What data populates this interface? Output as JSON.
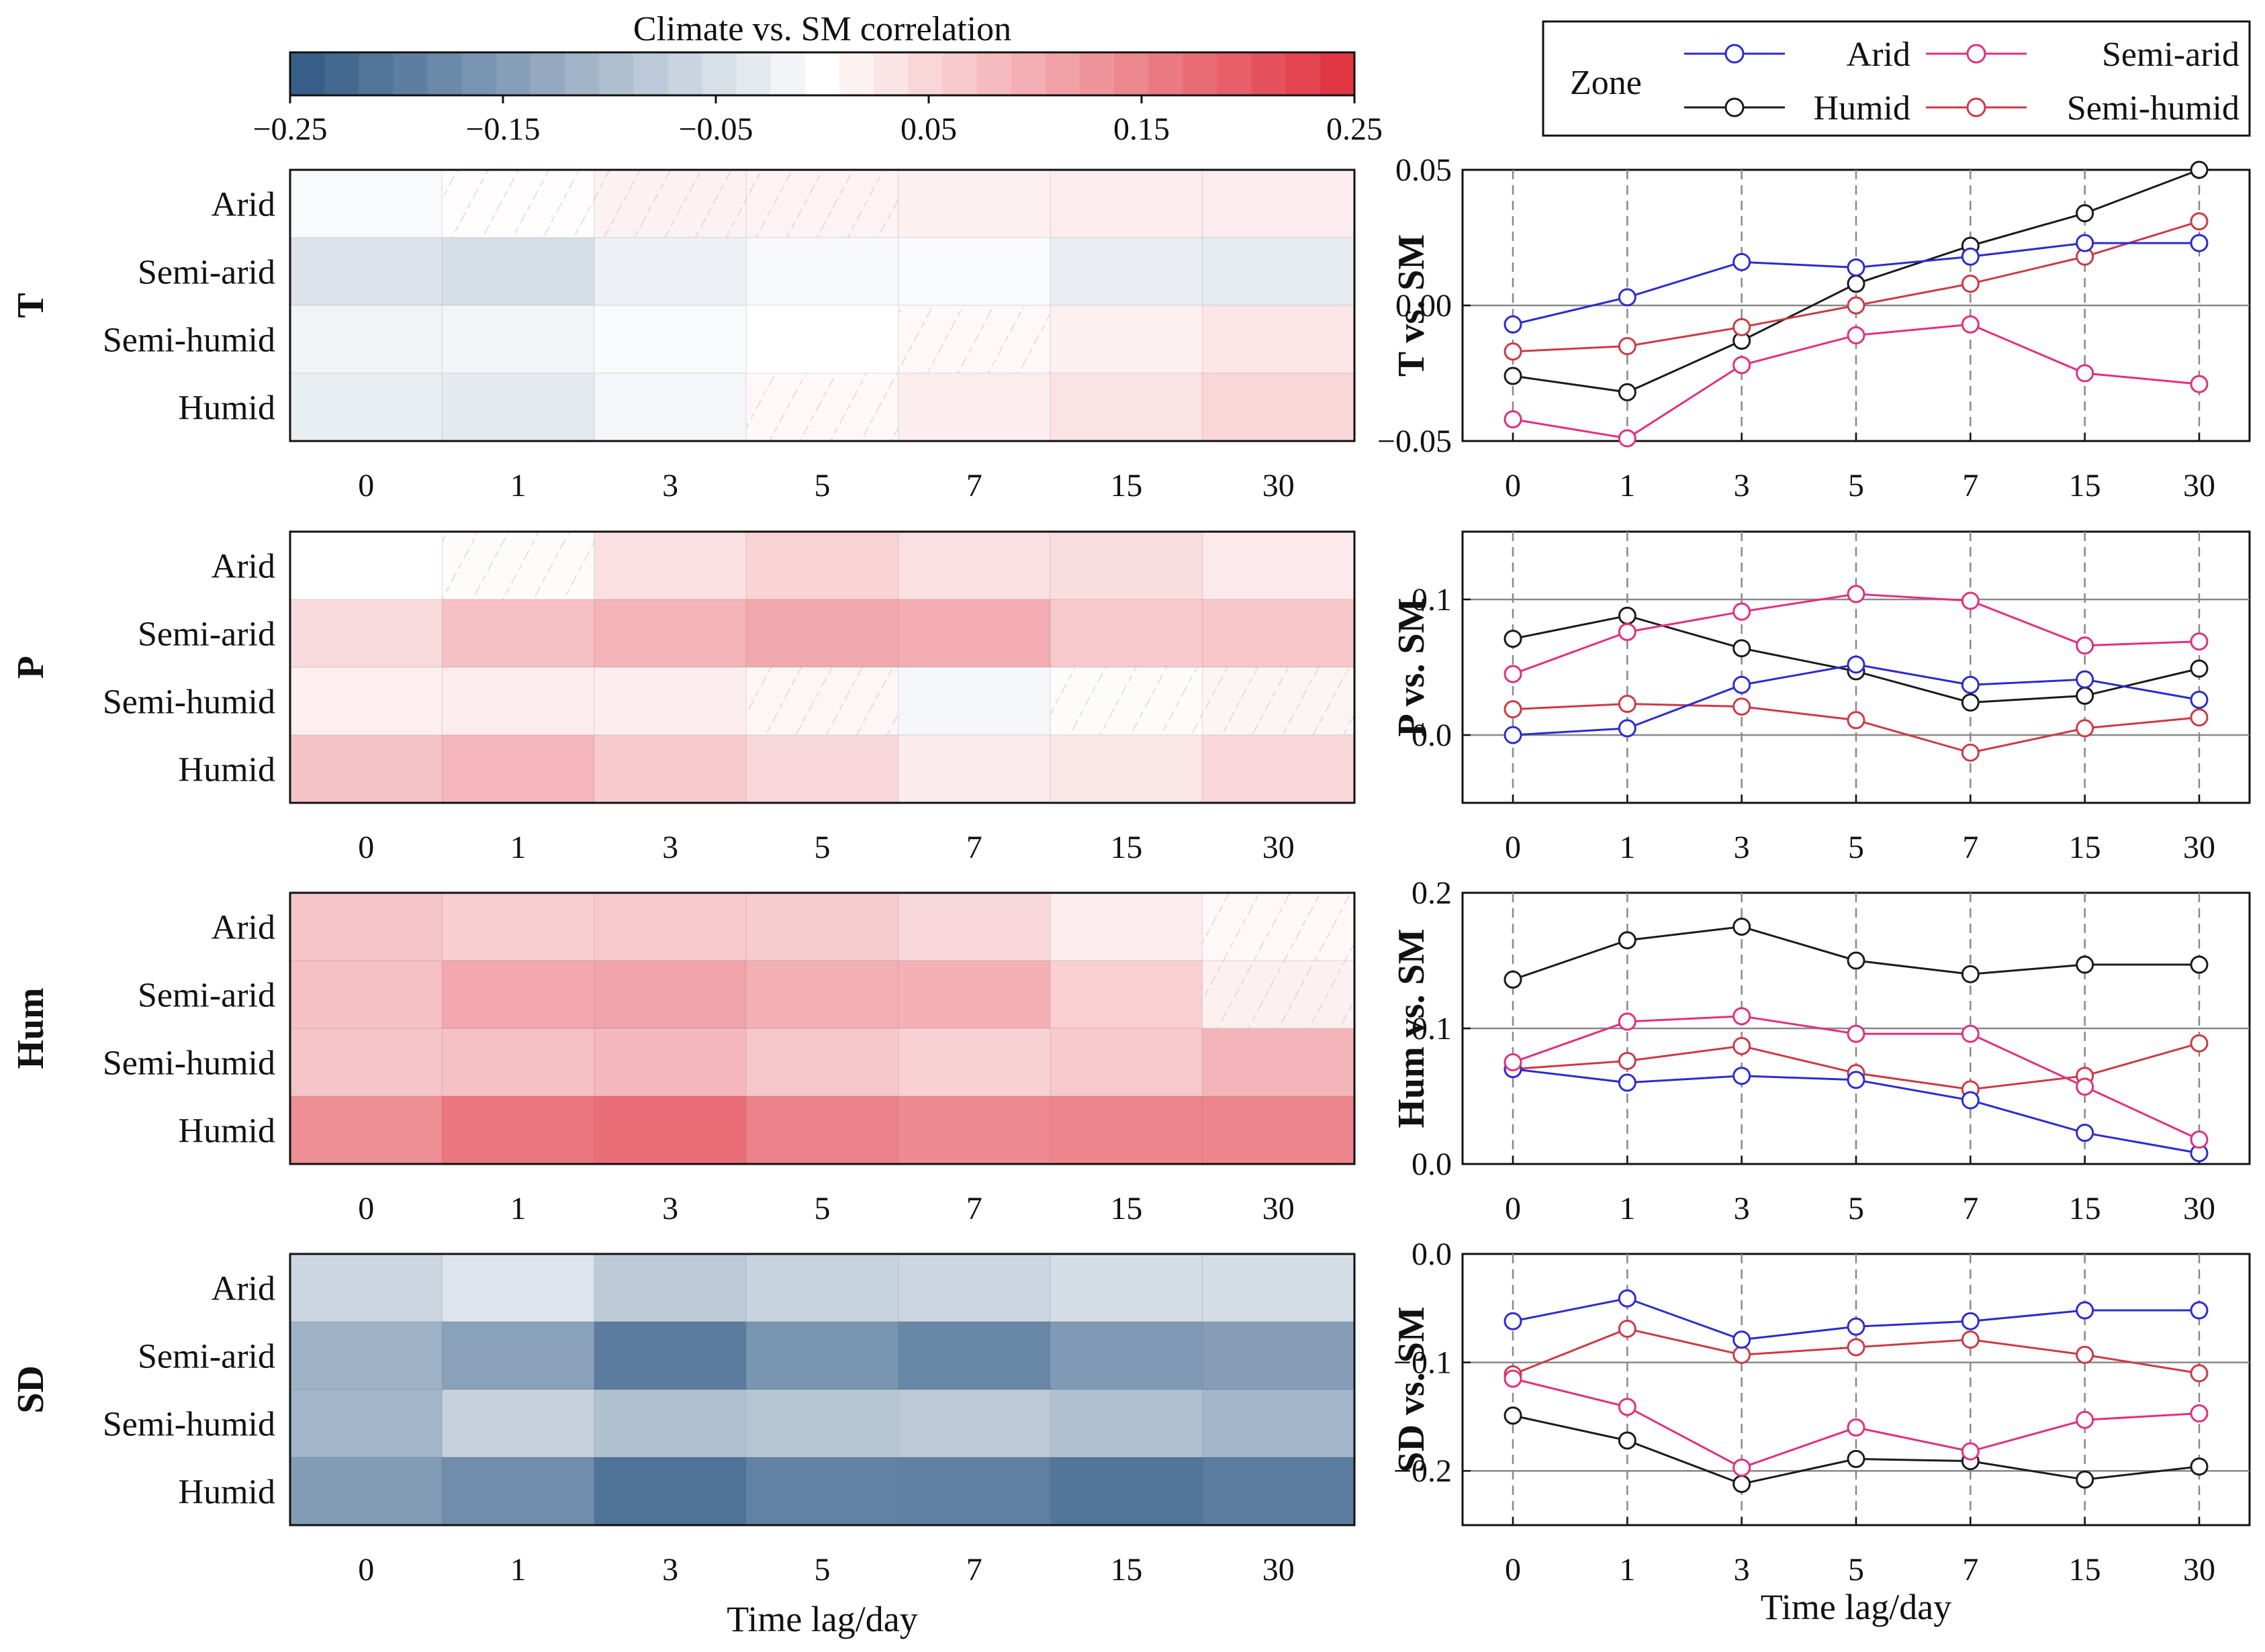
{
  "chart_data": {
    "type": "heatmap",
    "colorbar": {
      "title": "Climate vs. SM correlation",
      "min": -0.25,
      "max": 0.25,
      "ticks": [
        "−0.25",
        "−0.15",
        "−0.05",
        "0.05",
        "0.15",
        "0.25"
      ],
      "neg_color": "#2f5985",
      "pos_color": "#e0303d"
    },
    "lags": [
      "0",
      "1",
      "3",
      "5",
      "7",
      "15",
      "30"
    ],
    "zones": [
      "Arid",
      "Semi-arid",
      "Semi-humid",
      "Humid"
    ],
    "xlabel": "Time lag/day",
    "panels": [
      {
        "var": "T",
        "ylabel": "T vs. SM",
        "ylim": [
          -0.05,
          0.05
        ],
        "yticks": [
          "−0.05",
          "0.00",
          "0.05"
        ],
        "series": [
          {
            "name": "Arid",
            "values": [
              -0.007,
              0.003,
              0.016,
              0.014,
              0.018,
              0.023,
              0.023
            ]
          },
          {
            "name": "Semi-arid",
            "values": [
              -0.042,
              -0.049,
              -0.022,
              -0.011,
              -0.007,
              -0.025,
              -0.029
            ]
          },
          {
            "name": "Semi-humid",
            "values": [
              -0.017,
              -0.015,
              -0.008,
              0.0,
              0.008,
              0.018,
              0.031
            ]
          },
          {
            "name": "Humid",
            "values": [
              -0.026,
              -0.032,
              -0.013,
              0.008,
              0.022,
              0.034,
              0.05
            ]
          }
        ],
        "heat_insignificant": [
          [
            1,
            2,
            3
          ],
          [],
          [
            4
          ],
          [
            3
          ]
        ]
      },
      {
        "var": "P",
        "ylabel": "P vs. SM",
        "ylim": [
          -0.05,
          0.15
        ],
        "yticks": [
          "0.0",
          "0.1"
        ],
        "series": [
          {
            "name": "Arid",
            "values": [
              0.0,
              0.005,
              0.037,
              0.052,
              0.037,
              0.041,
              0.026
            ]
          },
          {
            "name": "Semi-arid",
            "values": [
              0.045,
              0.076,
              0.091,
              0.104,
              0.099,
              0.066,
              0.069
            ]
          },
          {
            "name": "Semi-humid",
            "values": [
              0.019,
              0.023,
              0.021,
              0.011,
              -0.013,
              0.005,
              0.013
            ]
          },
          {
            "name": "Humid",
            "values": [
              0.071,
              0.088,
              0.064,
              0.047,
              0.024,
              0.029,
              0.049
            ]
          }
        ],
        "heat_insignificant": [
          [
            1
          ],
          [],
          [
            3,
            5,
            6
          ],
          []
        ]
      },
      {
        "var": "Hum",
        "ylabel": "Hum vs. SM",
        "ylim": [
          0.0,
          0.2
        ],
        "yticks": [
          "0.0",
          "0.1",
          "0.2"
        ],
        "series": [
          {
            "name": "Arid",
            "values": [
              0.07,
              0.06,
              0.065,
              0.062,
              0.047,
              0.023,
              0.008
            ]
          },
          {
            "name": "Semi-arid",
            "values": [
              0.075,
              0.105,
              0.109,
              0.096,
              0.096,
              0.057,
              0.018
            ]
          },
          {
            "name": "Semi-humid",
            "values": [
              0.07,
              0.076,
              0.087,
              0.067,
              0.055,
              0.065,
              0.089
            ]
          },
          {
            "name": "Humid",
            "values": [
              0.136,
              0.165,
              0.175,
              0.15,
              0.14,
              0.147,
              0.147
            ]
          }
        ],
        "heat_insignificant": [
          [
            6
          ],
          [
            6
          ],
          [],
          []
        ]
      },
      {
        "var": "SD",
        "ylabel": "SD vs. SM",
        "ylim": [
          -0.25,
          0.0
        ],
        "yticks": [
          "−0.2",
          "−0.1",
          "0.0"
        ],
        "series": [
          {
            "name": "Arid",
            "values": [
              -0.062,
              -0.041,
              -0.079,
              -0.067,
              -0.062,
              -0.052,
              -0.052
            ]
          },
          {
            "name": "Semi-arid",
            "values": [
              -0.115,
              -0.141,
              -0.197,
              -0.16,
              -0.182,
              -0.153,
              -0.147
            ]
          },
          {
            "name": "Semi-humid",
            "values": [
              -0.111,
              -0.069,
              -0.093,
              -0.086,
              -0.079,
              -0.093,
              -0.11
            ]
          },
          {
            "name": "Humid",
            "values": [
              -0.149,
              -0.172,
              -0.212,
              -0.189,
              -0.191,
              -0.208,
              -0.196
            ]
          }
        ],
        "heat_insignificant": [
          [],
          [],
          [],
          []
        ]
      }
    ]
  },
  "legend": {
    "title": "Zone",
    "entries": [
      {
        "name": "Arid",
        "color": "#2b2bcf"
      },
      {
        "name": "Semi-arid",
        "color": "#e0307f"
      },
      {
        "name": "Humid",
        "color": "#1a1a1a"
      },
      {
        "name": "Semi-humid",
        "color": "#cc3a44"
      }
    ]
  }
}
